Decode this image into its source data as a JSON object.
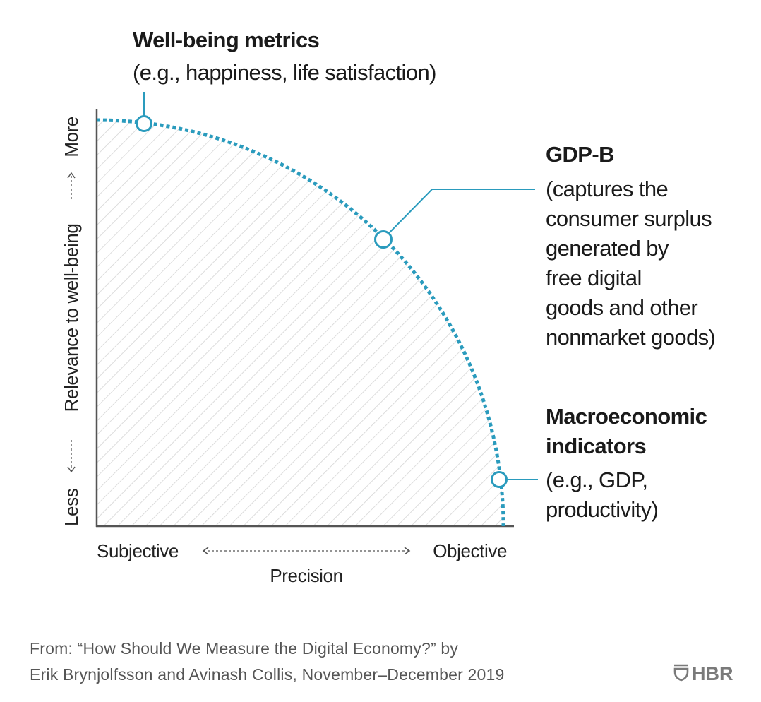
{
  "colors": {
    "curve": "#2a9bbd",
    "axis": "#555555",
    "hatch": "#d4d4d4",
    "footer": "#555555",
    "logo": "#7a7a7a"
  },
  "well_being": {
    "title": "Well-being metrics",
    "desc": "(e.g., happiness, life satisfaction)"
  },
  "gdp_b": {
    "title": "GDP-B",
    "lines": [
      "(captures the",
      "consumer surplus",
      "generated by",
      "free digital",
      "goods and other",
      "nonmarket goods)"
    ]
  },
  "macro": {
    "title_lines": [
      "Macroeconomic",
      "indicators"
    ],
    "lines": [
      "(e.g., GDP,",
      "productivity)"
    ]
  },
  "y_axis": {
    "label": "Relevance to well-being",
    "low": "Less",
    "high": "More"
  },
  "x_axis": {
    "label": "Precision",
    "low": "Subjective",
    "high": "Objective"
  },
  "footer": {
    "line1": "From: “How Should We Measure the Digital Economy?” by",
    "line2": "Erik Brynjolfsson and Avinash Collis, November–December 2019"
  },
  "logo": {
    "text": "HBR"
  }
}
